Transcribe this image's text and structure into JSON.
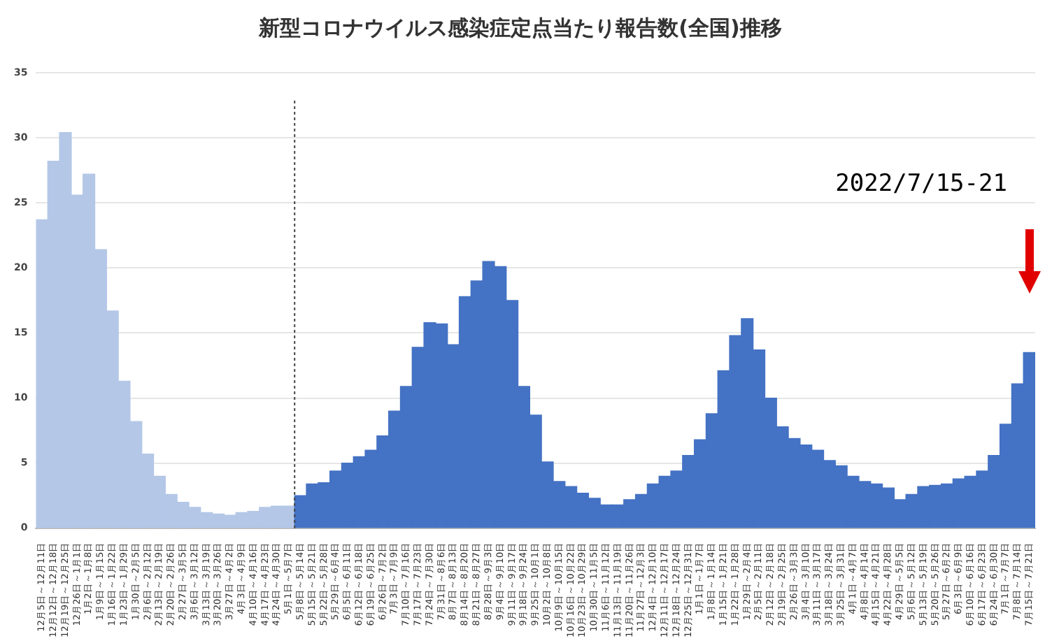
{
  "chart_data": {
    "type": "bar",
    "title": "新型コロナウイルス感染症定点当たり報告数(全国)推移",
    "categories": [
      "12月5日～12月11日",
      "12月12日～12月18日",
      "12月19日～12月25日",
      "12月26日～1月1日",
      "1月2日～1月8日",
      "1月9日～1月15日",
      "1月16日～1月22日",
      "1月23日～1月29日",
      "1月30日～2月5日",
      "2月6日～2月12日",
      "2月13日～2月19日",
      "2月20日～2月26日",
      "2月27日～3月5日",
      "3月6日～3月12日",
      "3月13日～3月19日",
      "3月20日～3月26日",
      "3月27日～4月2日",
      "4月3日～4月9日",
      "4月10日～4月16日",
      "4月17日～4月23日",
      "4月24日～4月30日",
      "5月1日～5月7日",
      "5月8日～5月14日",
      "5月15日～5月21日",
      "5月22日～5月28日",
      "5月29日～6月4日",
      "6月5日～6月11日",
      "6月12日～6月18日",
      "6月19日～6月25日",
      "6月26日～7月2日",
      "7月3日～7月9日",
      "7月10日～7月16日",
      "7月17日～7月23日",
      "7月24日～7月30日",
      "7月31日～8月6日",
      "8月7日～8月13日",
      "8月14日～8月20日",
      "8月21日～8月27日",
      "8月28日～9月3日",
      "9月4日～9月10日",
      "9月11日～9月17日",
      "9月18日～9月24日",
      "9月25日～10月1日",
      "10月2日～10月8日",
      "10月9日～10月15日",
      "10月16日～10月22日",
      "10月23日～10月29日",
      "10月30日～11月5日",
      "11月6日～11月12日",
      "11月13日～11月19日",
      "11月20日～11月26日",
      "11月27日～12月3日",
      "12月4日～12月10日",
      "12月11日～12月17日",
      "12月18日～12月24日",
      "12月25日～12月31日",
      "1月1日～1月7日",
      "1月8日～1月14日",
      "1月15日～1月21日",
      "1月22日～1月28日",
      "1月29日～2月4日",
      "2月5日～2月11日",
      "2月12日～2月18日",
      "2月19日～2月25日",
      "2月26日～3月3日",
      "3月4日～3月10日",
      "3月11日～3月17日",
      "3月18日～3月24日",
      "3月25日～3月31日",
      "4月1日～4月7日",
      "4月8日～4月14日",
      "4月15日～4月21日",
      "4月22日～4月28日",
      "4月29日～5月5日",
      "5月6日～5月12日",
      "5月13日～5月19日",
      "5月20日～5月26日",
      "5月27日～6月2日",
      "6月3日～6月9日",
      "6月10日～6月16日",
      "6月17日～6月23日",
      "6月24日～6月30日",
      "7月1日～7月7日",
      "7月8日～7月14日",
      "7月15日～7月21日"
    ],
    "values": [
      23.7,
      28.2,
      30.4,
      25.6,
      27.2,
      21.4,
      16.7,
      11.3,
      8.2,
      5.7,
      4.0,
      2.6,
      2.0,
      1.6,
      1.2,
      1.1,
      1.0,
      1.2,
      1.3,
      1.6,
      1.7,
      1.7,
      2.5,
      3.4,
      3.5,
      4.4,
      5.0,
      5.5,
      6.0,
      7.1,
      9.0,
      10.9,
      13.9,
      15.8,
      15.7,
      14.1,
      17.8,
      19.0,
      20.5,
      20.1,
      17.5,
      10.9,
      8.7,
      5.1,
      3.6,
      3.2,
      2.7,
      2.3,
      1.8,
      1.8,
      2.2,
      2.6,
      3.4,
      4.0,
      4.4,
      5.6,
      6.8,
      8.8,
      12.1,
      14.8,
      16.1,
      13.7,
      10.0,
      7.8,
      6.9,
      6.4,
      6.0,
      5.2,
      4.8,
      4.0,
      3.6,
      3.4,
      3.1,
      2.2,
      2.6,
      3.2,
      3.3,
      3.4,
      3.8,
      4.0,
      4.4,
      5.6,
      8.0,
      11.1,
      13.5
    ],
    "colors": [
      "#b4c7e7",
      "#b4c7e7",
      "#b4c7e7",
      "#b4c7e7",
      "#b4c7e7",
      "#b4c7e7",
      "#b4c7e7",
      "#b4c7e7",
      "#b4c7e7",
      "#b4c7e7",
      "#b4c7e7",
      "#b4c7e7",
      "#b4c7e7",
      "#b4c7e7",
      "#b4c7e7",
      "#b4c7e7",
      "#b4c7e7",
      "#b4c7e7",
      "#b4c7e7",
      "#b4c7e7",
      "#b4c7e7",
      "#b4c7e7",
      "#4472c4",
      "#4472c4",
      "#4472c4",
      "#4472c4",
      "#4472c4",
      "#4472c4",
      "#4472c4",
      "#4472c4",
      "#4472c4",
      "#4472c4",
      "#4472c4",
      "#4472c4",
      "#4472c4",
      "#4472c4",
      "#4472c4",
      "#4472c4",
      "#4472c4",
      "#4472c4",
      "#4472c4",
      "#4472c4",
      "#4472c4",
      "#4472c4",
      "#4472c4",
      "#4472c4",
      "#4472c4",
      "#4472c4",
      "#4472c4",
      "#4472c4",
      "#4472c4",
      "#4472c4",
      "#4472c4",
      "#4472c4",
      "#4472c4",
      "#4472c4",
      "#4472c4",
      "#4472c4",
      "#4472c4",
      "#4472c4",
      "#4472c4",
      "#4472c4",
      "#4472c4",
      "#4472c4",
      "#4472c4",
      "#4472c4",
      "#4472c4",
      "#4472c4",
      "#4472c4",
      "#4472c4",
      "#4472c4",
      "#4472c4",
      "#4472c4",
      "#4472c4",
      "#4472c4",
      "#4472c4",
      "#4472c4",
      "#4472c4",
      "#4472c4",
      "#4472c4",
      "#4472c4",
      "#4472c4",
      "#4472c4",
      "#4472c4",
      "#4472c4"
    ],
    "ylim": [
      0,
      35
    ],
    "yticks": [
      0,
      5,
      10,
      15,
      20,
      25,
      30,
      35
    ],
    "grid": "y",
    "legend": false,
    "ref_lines": [
      {
        "axis": "x",
        "value": "5月8日～5月14日",
        "color": "#444444",
        "line_style": "dotted"
      }
    ],
    "annotations": [
      "2022/7/15-21"
    ]
  }
}
